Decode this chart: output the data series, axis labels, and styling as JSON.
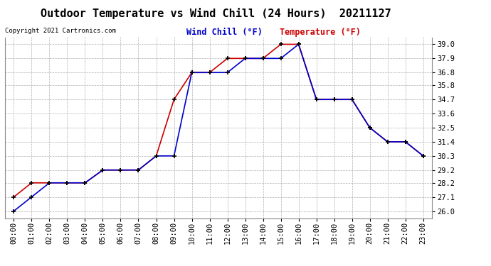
{
  "title": "Outdoor Temperature vs Wind Chill (24 Hours)  20211127",
  "copyright": "Copyright 2021 Cartronics.com",
  "legend_wind_chill": "Wind Chill (°F)",
  "legend_temperature": "Temperature (°F)",
  "x_labels": [
    "00:00",
    "01:00",
    "02:00",
    "03:00",
    "04:00",
    "05:00",
    "06:00",
    "07:00",
    "08:00",
    "09:00",
    "10:00",
    "11:00",
    "12:00",
    "13:00",
    "14:00",
    "15:00",
    "16:00",
    "17:00",
    "18:00",
    "19:00",
    "20:00",
    "21:00",
    "22:00",
    "23:00"
  ],
  "temperature": [
    27.1,
    28.2,
    28.2,
    28.2,
    28.2,
    29.2,
    29.2,
    29.2,
    30.3,
    34.7,
    36.8,
    36.8,
    37.9,
    37.9,
    37.9,
    39.0,
    39.0,
    34.7,
    34.7,
    34.7,
    32.5,
    31.4,
    31.4,
    30.3
  ],
  "wind_chill": [
    26.0,
    27.1,
    28.2,
    28.2,
    28.2,
    29.2,
    29.2,
    29.2,
    30.3,
    30.3,
    36.8,
    36.8,
    36.8,
    37.9,
    37.9,
    37.9,
    39.0,
    34.7,
    34.7,
    34.7,
    32.5,
    31.4,
    31.4,
    30.3
  ],
  "y_ticks": [
    26.0,
    27.1,
    28.2,
    29.2,
    30.3,
    31.4,
    32.5,
    33.6,
    34.7,
    35.8,
    36.8,
    37.9,
    39.0
  ],
  "ylim": [
    25.45,
    39.55
  ],
  "temp_color": "#cc0000",
  "wind_color": "#0000cc",
  "background_color": "#ffffff",
  "grid_color": "#b0b0b0",
  "title_fontsize": 11,
  "axis_fontsize": 7.5,
  "legend_fontsize": 8.5
}
